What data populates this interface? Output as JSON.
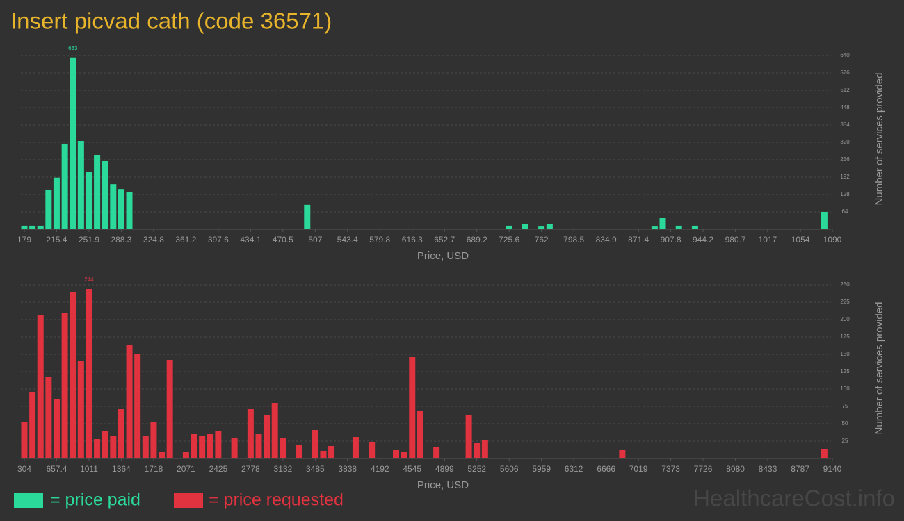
{
  "title": "Insert picvad cath (code 36571)",
  "watermark": "HealthcareCost.info",
  "chart_data": [
    {
      "type": "histogram",
      "x_label": "Price, USD",
      "y_label": "Number of services provided",
      "xlim": [
        179,
        1090
      ],
      "ylim": [
        0,
        640
      ],
      "xticks": [
        179,
        215.4,
        251.9,
        288.3,
        324.8,
        361.2,
        397.6,
        434.1,
        470.5,
        507,
        543.4,
        579.8,
        616.3,
        652.7,
        689.2,
        725.6,
        762,
        798.5,
        834.9,
        871.4,
        907.8,
        944.2,
        980.7,
        1017,
        1054,
        1090
      ],
      "yticks": [
        64,
        128,
        192,
        256,
        320,
        384,
        448,
        512,
        576,
        640
      ],
      "grid": true,
      "series": [
        {
          "name": "= price paid",
          "color": "#2bd99b",
          "x": [
            179,
            188.1,
            197.2,
            206.3,
            215.4,
            224.6,
            233.7,
            242.8,
            251.9,
            261,
            270.1,
            279.2,
            288.3,
            297.4,
            497.9,
            725.6,
            743.8,
            762,
            771.2,
            889.6,
            898.7,
            916.9,
            935.1,
            1080.9
          ],
          "values": [
            13,
            13,
            13,
            146,
            190,
            315,
            633,
            325,
            212,
            274,
            251,
            166,
            148,
            136,
            90,
            13,
            18,
            10,
            18,
            10,
            41,
            13,
            13,
            64
          ]
        }
      ]
    },
    {
      "type": "histogram",
      "x_label": "Price, USD",
      "y_label": "Number of services provided",
      "xlim": [
        304,
        9140
      ],
      "ylim": [
        0,
        250
      ],
      "xticks": [
        304,
        657.4,
        1011,
        1364,
        1718,
        2071,
        2425,
        2778,
        3132,
        3485,
        3838,
        4192,
        4545,
        4899,
        5252,
        5606,
        5959,
        6312,
        6666,
        7019,
        7373,
        7726,
        8080,
        8433,
        8787,
        9140
      ],
      "yticks": [
        25,
        50,
        75,
        100,
        125,
        150,
        175,
        200,
        225,
        250
      ],
      "grid": true,
      "series": [
        {
          "name": "= price requested",
          "color": "#e0323f",
          "x": [
            304,
            392.4,
            480.7,
            569.1,
            657.4,
            745.8,
            834.2,
            922.5,
            1010.9,
            1099.2,
            1187.6,
            1276,
            1364.3,
            1452.7,
            1541,
            1629.4,
            1717.8,
            1806.1,
            1894.5,
            2071.2,
            2159.6,
            2247.9,
            2336.3,
            2424.6,
            2601.4,
            2778.1,
            2866.4,
            2954.8,
            3043.2,
            3131.5,
            3308.2,
            3485,
            3573.3,
            3661.7,
            3926.8,
            4103.5,
            4368.6,
            4456.9,
            4545.3,
            4633.6,
            4810.4,
            5163.8,
            5252.2,
            5340.5,
            6842.6,
            9051.6
          ],
          "values": [
            53,
            95,
            207,
            117,
            86,
            209,
            240,
            140,
            244,
            28,
            39,
            32,
            71,
            163,
            151,
            32,
            53,
            10,
            142,
            10,
            35,
            32,
            35,
            40,
            29,
            71,
            35,
            62,
            80,
            29,
            20,
            41,
            11,
            18,
            31,
            24,
            12,
            10,
            146,
            68,
            17,
            63,
            22,
            27,
            12,
            13
          ]
        }
      ]
    }
  ]
}
